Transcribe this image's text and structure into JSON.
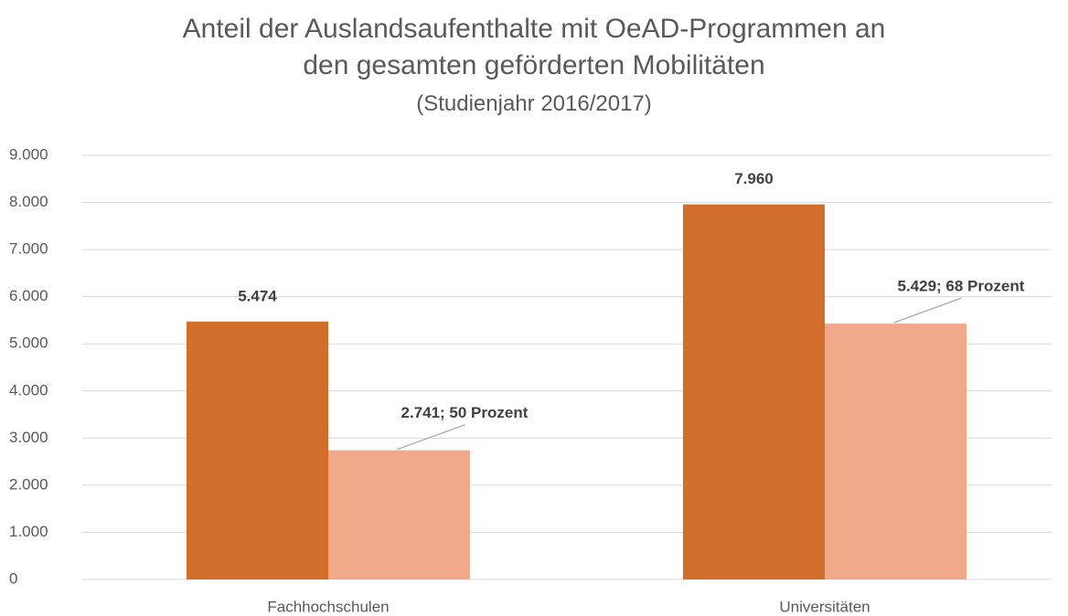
{
  "chart_data": {
    "type": "bar",
    "title": "Anteil der Auslandsaufenthalte mit OeAD-Programmen an den gesamten geförderten Mobilitäten",
    "subtitle": "(Studienjahr 2016/2017)",
    "categories": [
      "Fachhochschulen",
      "Universitäten"
    ],
    "series": [
      {
        "color": "#d36e2a",
        "values": [
          5474,
          7960
        ],
        "value_labels": [
          "5.474",
          "7.960"
        ]
      },
      {
        "color": "#f2a98a",
        "values": [
          2741,
          5429
        ],
        "value_labels": [
          "2.741; 50 Prozent",
          "5.429; 68 Prozent"
        ]
      }
    ],
    "ylim": [
      0,
      9000
    ],
    "yticks": [
      0,
      {
        "value": 1000,
        "label": "1.000"
      },
      {
        "value": 2000,
        "label": "2.000"
      },
      {
        "value": 3000,
        "label": "3.000"
      },
      {
        "value": 4000,
        "label": "4.000"
      },
      {
        "value": 5000,
        "label": "5.000"
      },
      {
        "value": 6000,
        "label": "6.000"
      },
      {
        "value": 7000,
        "label": "7.000"
      },
      {
        "value": 8000,
        "label": "8.000"
      },
      {
        "value": 9000,
        "label": "9.000"
      }
    ],
    "grid": true
  }
}
